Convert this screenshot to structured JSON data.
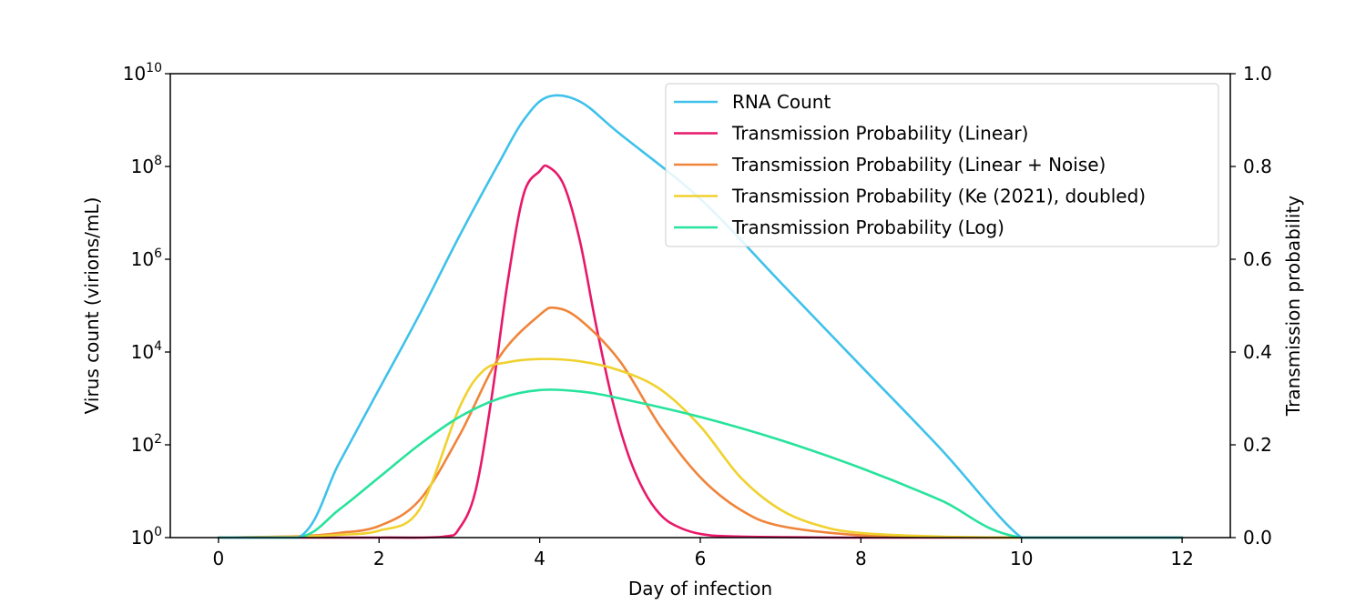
{
  "chart_data": {
    "type": "line",
    "xlabel": "Day of infection",
    "ylabel_left": "Virus count (virions/mL)",
    "ylabel_right": "Transmission probability",
    "x_range": [
      -0.6,
      12.6
    ],
    "x_ticks": [
      0,
      2,
      4,
      6,
      8,
      10,
      12
    ],
    "left_axis": {
      "scale": "log10",
      "range_exponent": [
        0,
        10
      ],
      "tick_exponents": [
        0,
        2,
        4,
        6,
        8,
        10
      ],
      "tick_base": "10"
    },
    "right_axis": {
      "scale": "linear",
      "range": [
        0,
        1
      ],
      "ticks": [
        "0.0",
        "0.2",
        "0.4",
        "0.6",
        "0.8",
        "1.0"
      ]
    },
    "grid": false,
    "legend_position": "top-right",
    "series": [
      {
        "name": "RNA Count",
        "axis": "left",
        "color": "#3fc1ea",
        "x": [
          0,
          1,
          1.5,
          2,
          2.5,
          3,
          3.5,
          3.8,
          4.1,
          4.5,
          5,
          6,
          7,
          8,
          9,
          10,
          10.5,
          12
        ],
        "log10": [
          0,
          0,
          1.6,
          3.2,
          4.8,
          6.5,
          8.1,
          9.0,
          9.5,
          9.4,
          8.7,
          7.3,
          5.5,
          3.7,
          1.9,
          0,
          0,
          0
        ]
      },
      {
        "name": "Transmission Probability (Linear)",
        "axis": "right",
        "color": "#e8186a",
        "x": [
          0,
          2,
          2.8,
          3.0,
          3.2,
          3.4,
          3.6,
          3.8,
          4.0,
          4.1,
          4.3,
          4.5,
          4.7,
          4.9,
          5.1,
          5.3,
          5.5,
          5.7,
          6.0,
          6.5,
          8,
          10,
          12
        ],
        "y": [
          0.0,
          0.0,
          0.002,
          0.02,
          0.1,
          0.3,
          0.55,
          0.74,
          0.79,
          0.8,
          0.76,
          0.64,
          0.46,
          0.3,
          0.18,
          0.1,
          0.05,
          0.025,
          0.008,
          0.002,
          0.0,
          0.0,
          0.0
        ]
      },
      {
        "name": "Transmission Probability (Linear + Noise)",
        "axis": "right",
        "color": "#f0843a",
        "x": [
          0,
          1,
          1.5,
          2,
          2.5,
          3,
          3.5,
          4,
          4.2,
          4.5,
          5,
          5.5,
          6,
          6.5,
          7,
          8,
          9,
          10,
          12
        ],
        "y": [
          0.0,
          0.003,
          0.01,
          0.025,
          0.08,
          0.22,
          0.39,
          0.48,
          0.495,
          0.47,
          0.38,
          0.24,
          0.13,
          0.06,
          0.025,
          0.005,
          0.001,
          0.0,
          0.0
        ]
      },
      {
        "name": "Transmission Probability (Ke (2021), doubled)",
        "axis": "right",
        "color": "#f0d12e",
        "x": [
          0,
          1,
          1.5,
          2,
          2.5,
          3,
          3.3,
          3.6,
          4,
          4.5,
          5,
          5.5,
          6,
          6.5,
          7,
          7.5,
          8,
          9,
          10,
          12
        ],
        "y": [
          0.0,
          0.002,
          0.006,
          0.015,
          0.06,
          0.28,
          0.36,
          0.378,
          0.385,
          0.38,
          0.36,
          0.32,
          0.24,
          0.13,
          0.06,
          0.025,
          0.01,
          0.002,
          0.0,
          0.0
        ]
      },
      {
        "name": "Transmission Probability (Log)",
        "axis": "right",
        "color": "#27e39c",
        "x": [
          0,
          1,
          1.5,
          2,
          2.5,
          3,
          3.5,
          4,
          4.5,
          5,
          6,
          7,
          8,
          9,
          10,
          12
        ],
        "y": [
          0.0,
          0.0,
          0.06,
          0.13,
          0.2,
          0.26,
          0.3,
          0.318,
          0.315,
          0.3,
          0.26,
          0.21,
          0.15,
          0.08,
          0.0,
          0.0
        ]
      }
    ]
  }
}
